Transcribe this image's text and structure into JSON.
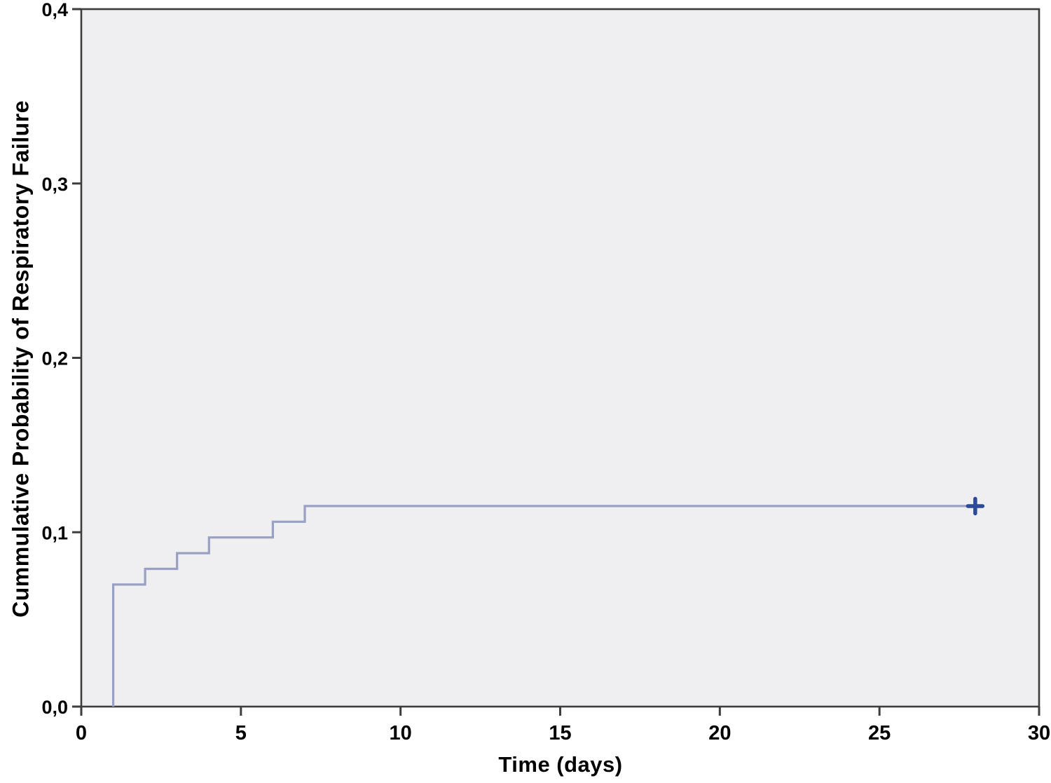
{
  "chart_data": {
    "type": "line",
    "subtype": "kaplan-meier-step-curve",
    "title": "",
    "xlabel": "Time (days)",
    "ylabel": "Cummulative Probability of Respiratory Failure",
    "xlim": [
      0,
      30
    ],
    "ylim": [
      0.0,
      0.4
    ],
    "grid": false,
    "legend_position": "none",
    "x_ticks": [
      {
        "v": 0,
        "label": "0"
      },
      {
        "v": 5,
        "label": "5"
      },
      {
        "v": 10,
        "label": "10"
      },
      {
        "v": 15,
        "label": "15"
      },
      {
        "v": 20,
        "label": "20"
      },
      {
        "v": 25,
        "label": "25"
      },
      {
        "v": 30,
        "label": "30"
      }
    ],
    "y_ticks": [
      {
        "v": 0.0,
        "label": "0,0"
      },
      {
        "v": 0.1,
        "label": "0,1"
      },
      {
        "v": 0.2,
        "label": "0,2"
      },
      {
        "v": 0.3,
        "label": "0,3"
      },
      {
        "v": 0.4,
        "label": "0,4"
      }
    ],
    "series": [
      {
        "name": "cumulative-probability-of-respiratory-failure",
        "start": {
          "x": 1,
          "y": 0.0
        },
        "steps": [
          {
            "x": 1,
            "y": 0.07
          },
          {
            "x": 2,
            "y": 0.079
          },
          {
            "x": 3,
            "y": 0.088
          },
          {
            "x": 4,
            "y": 0.097
          },
          {
            "x": 6,
            "y": 0.106
          },
          {
            "x": 7,
            "y": 0.115
          }
        ],
        "end_x": 28.15,
        "censored": [
          {
            "x": 28,
            "y": 0.115
          }
        ]
      }
    ],
    "colors": {
      "plot_background": "#efeef0",
      "frame": "#3d3d3d",
      "curve": "#98a0c4",
      "censor_mark": "#2c4a9a",
      "text": "#000000"
    }
  }
}
